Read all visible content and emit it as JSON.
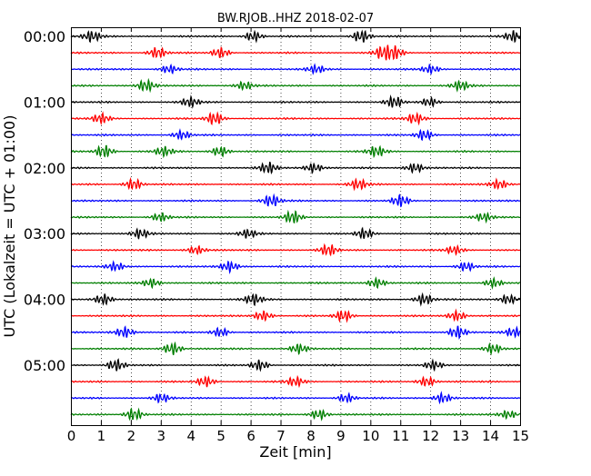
{
  "chart_data": {
    "type": "line",
    "title": "BW.RJOB..HHZ 2018-02-07",
    "xlabel": "Zeit  [min]",
    "ylabel": "UTC (Lokalzeit = UTC + 01:00)",
    "xlim": [
      0,
      15
    ],
    "x_ticks": [
      "0",
      "1",
      "2",
      "3",
      "4",
      "5",
      "6",
      "7",
      "8",
      "9",
      "10",
      "11",
      "12",
      "13",
      "14",
      "15"
    ],
    "y_tick_labels": [
      "00:00",
      "01:00",
      "02:00",
      "03:00",
      "04:00",
      "05:00"
    ],
    "x_grid": "dotted vertical at each minute",
    "colors": [
      "#000000",
      "#ff0000",
      "#0000ff",
      "#007f00"
    ],
    "series": [
      {
        "start": "00:00",
        "color": "#000000",
        "packets": [
          [
            0.7,
            0.9
          ],
          [
            6.1,
            0.8
          ],
          [
            9.7,
            1.0
          ],
          [
            14.8,
            0.9
          ]
        ]
      },
      {
        "start": "00:15",
        "color": "#ff0000",
        "packets": [
          [
            2.9,
            0.9
          ],
          [
            5.0,
            0.8
          ],
          [
            10.4,
            1.0
          ],
          [
            10.8,
            1.0
          ]
        ]
      },
      {
        "start": "00:30",
        "color": "#0000ff",
        "packets": [
          [
            3.3,
            0.7
          ],
          [
            8.2,
            0.7
          ],
          [
            12.0,
            0.7
          ]
        ]
      },
      {
        "start": "00:45",
        "color": "#007f00",
        "packets": [
          [
            2.5,
            1.0
          ],
          [
            5.8,
            0.7
          ],
          [
            13.0,
            0.8
          ]
        ]
      },
      {
        "start": "01:00",
        "color": "#000000",
        "packets": [
          [
            4.0,
            0.8
          ],
          [
            10.8,
            0.9
          ],
          [
            12.0,
            0.7
          ]
        ]
      },
      {
        "start": "01:15",
        "color": "#ff0000",
        "packets": [
          [
            1.0,
            0.8
          ],
          [
            4.8,
            1.0
          ],
          [
            11.5,
            0.9
          ]
        ]
      },
      {
        "start": "01:30",
        "color": "#0000ff",
        "packets": [
          [
            3.7,
            0.7
          ],
          [
            11.8,
            0.8
          ]
        ]
      },
      {
        "start": "01:45",
        "color": "#007f00",
        "packets": [
          [
            1.1,
            1.0
          ],
          [
            3.1,
            0.8
          ],
          [
            5.0,
            0.8
          ],
          [
            10.2,
            0.9
          ]
        ]
      },
      {
        "start": "02:00",
        "color": "#000000",
        "packets": [
          [
            6.6,
            0.9
          ],
          [
            8.1,
            0.8
          ],
          [
            11.5,
            0.8
          ]
        ]
      },
      {
        "start": "02:15",
        "color": "#ff0000",
        "packets": [
          [
            2.1,
            0.9
          ],
          [
            9.6,
            0.9
          ],
          [
            14.3,
            0.8
          ]
        ]
      },
      {
        "start": "02:30",
        "color": "#0000ff",
        "packets": [
          [
            6.7,
            1.0
          ],
          [
            11.0,
            0.9
          ]
        ]
      },
      {
        "start": "02:45",
        "color": "#007f00",
        "packets": [
          [
            3.0,
            0.7
          ],
          [
            7.4,
            1.0
          ],
          [
            13.8,
            0.7
          ]
        ]
      },
      {
        "start": "03:00",
        "color": "#000000",
        "packets": [
          [
            2.3,
            0.8
          ],
          [
            5.9,
            0.7
          ],
          [
            9.8,
            0.8
          ]
        ]
      },
      {
        "start": "03:15",
        "color": "#ff0000",
        "packets": [
          [
            4.2,
            0.7
          ],
          [
            8.6,
            0.9
          ],
          [
            12.8,
            0.7
          ]
        ]
      },
      {
        "start": "03:30",
        "color": "#0000ff",
        "packets": [
          [
            1.5,
            0.7
          ],
          [
            5.3,
            0.9
          ],
          [
            13.2,
            0.7
          ]
        ]
      },
      {
        "start": "03:45",
        "color": "#007f00",
        "packets": [
          [
            2.7,
            0.7
          ],
          [
            10.2,
            0.8
          ],
          [
            14.1,
            0.7
          ]
        ]
      },
      {
        "start": "04:00",
        "color": "#000000",
        "packets": [
          [
            1.1,
            0.9
          ],
          [
            6.1,
            0.9
          ],
          [
            11.8,
            0.9
          ],
          [
            14.6,
            0.8
          ]
        ]
      },
      {
        "start": "04:15",
        "color": "#ff0000",
        "packets": [
          [
            6.4,
            0.8
          ],
          [
            9.1,
            0.9
          ],
          [
            12.9,
            0.8
          ]
        ]
      },
      {
        "start": "04:30",
        "color": "#0000ff",
        "packets": [
          [
            1.8,
            0.9
          ],
          [
            5.0,
            0.7
          ],
          [
            12.9,
            1.0
          ],
          [
            14.8,
            0.8
          ]
        ]
      },
      {
        "start": "04:45",
        "color": "#007f00",
        "packets": [
          [
            3.4,
            1.0
          ],
          [
            7.6,
            0.8
          ],
          [
            14.1,
            0.8
          ]
        ]
      },
      {
        "start": "05:00",
        "color": "#000000",
        "packets": [
          [
            1.5,
            0.9
          ],
          [
            6.3,
            0.8
          ],
          [
            12.1,
            0.7
          ]
        ]
      },
      {
        "start": "05:15",
        "color": "#ff0000",
        "packets": [
          [
            4.5,
            0.8
          ],
          [
            7.5,
            0.8
          ],
          [
            11.9,
            0.8
          ]
        ]
      },
      {
        "start": "05:30",
        "color": "#0000ff",
        "packets": [
          [
            3.0,
            0.7
          ],
          [
            9.2,
            0.7
          ],
          [
            12.4,
            0.8
          ]
        ]
      },
      {
        "start": "05:45",
        "color": "#007f00",
        "packets": [
          [
            2.1,
            1.0
          ],
          [
            8.3,
            0.8
          ],
          [
            14.6,
            0.7
          ]
        ]
      }
    ]
  }
}
